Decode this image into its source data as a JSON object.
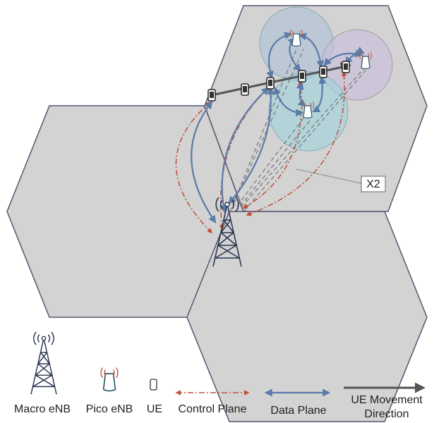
{
  "annotation": {
    "label": "X2"
  },
  "legend": [
    {
      "label": "Macro eNB"
    },
    {
      "label": "Pico eNB"
    },
    {
      "label": "UE"
    },
    {
      "label": "Control Plane"
    },
    {
      "label": "Data Plane"
    },
    {
      "lines": [
        "UE Movement",
        "Direction"
      ]
    }
  ]
}
